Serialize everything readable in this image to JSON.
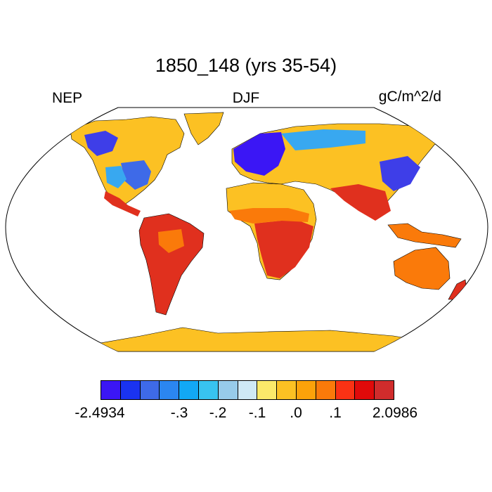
{
  "title": "1850_148 (yrs 35-54)",
  "left_label": "NEP",
  "center_label": "DJF",
  "right_label": "gC/m^2/d",
  "colorbar": {
    "colors": [
      "#3b16f5",
      "#1a33f0",
      "#3e6ae8",
      "#2b86f0",
      "#12a8f5",
      "#38c3f0",
      "#97cbea",
      "#cfe9f6",
      "#fbe96a",
      "#fcc123",
      "#fca20a",
      "#fa7a0a",
      "#fa3214",
      "#e00a0a",
      "#d02c2c"
    ],
    "labels": [
      "-2.4934",
      "-.3",
      "-.2",
      "-.1",
      ".0",
      ".1",
      "2.0986"
    ]
  },
  "colors": {
    "ocean": "#ffffff",
    "land_neutral": "#fcc123",
    "positive_strong": "#e0301e",
    "positive": "#fa7a0a",
    "negative": "#3e3ee8",
    "negative_light": "#38a8f0"
  }
}
